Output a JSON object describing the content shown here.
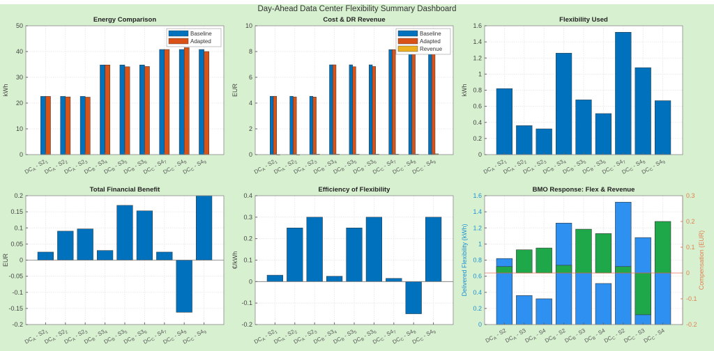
{
  "dashboard": {
    "title": "Day-Ahead Data Center Flexibility Summary Dashboard"
  },
  "colors": {
    "blue": "#0072bd",
    "orange": "#d95319",
    "yellow": "#edb120",
    "lightblue": "#2e90f0",
    "green": "#1fa84a",
    "rightaxis": "#e08050",
    "leftaxis_bmo": "#1e90d0"
  },
  "chart_data": [
    {
      "id": "energy",
      "type": "bar",
      "title": "Energy Comparison",
      "ylabel": "kWh",
      "ylim": [
        0,
        50
      ],
      "yticks": [
        0,
        10,
        20,
        30,
        40,
        50
      ],
      "categories": [
        "DC_A - S2_1",
        "DC_A - S2_2",
        "DC_A - S2_3",
        "DC_B - S3_4",
        "DC_B - S3_5",
        "DC_B - S3_6",
        "DC_C - S4_7",
        "DC_C - S4_8",
        "DC_C - S4_9"
      ],
      "series": [
        {
          "name": "Baseline",
          "color": "#0072bd",
          "values": [
            22.6,
            22.6,
            22.6,
            34.8,
            34.8,
            34.8,
            40.8,
            40.8,
            40.8
          ]
        },
        {
          "name": "Adapted",
          "color": "#d95319",
          "values": [
            22.6,
            22.4,
            22.3,
            34.8,
            34.1,
            34.2,
            40.8,
            41.5,
            40.0
          ]
        }
      ],
      "legend": "top-right",
      "grid": true
    },
    {
      "id": "cost",
      "type": "bar",
      "title": "Cost & DR Revenue",
      "ylabel": "EUR",
      "ylim": [
        0,
        10
      ],
      "yticks": [
        0,
        2,
        4,
        6,
        8,
        10
      ],
      "categories": [
        "DC_A - S2_1",
        "DC_A - S2_2",
        "DC_A - S2_3",
        "DC_B - S3_4",
        "DC_B - S3_5",
        "DC_B - S3_6",
        "DC_C - S4_7",
        "DC_C - S4_8",
        "DC_C - S4_9"
      ],
      "series": [
        {
          "name": "Baseline",
          "color": "#0072bd",
          "values": [
            4.53,
            4.53,
            4.53,
            6.97,
            6.97,
            6.97,
            8.15,
            8.15,
            8.15
          ]
        },
        {
          "name": "Adapted",
          "color": "#d95319",
          "values": [
            4.53,
            4.48,
            4.47,
            6.97,
            6.82,
            6.84,
            8.15,
            8.3,
            8.0
          ]
        },
        {
          "name": "Revenue",
          "color": "#edb120",
          "values": [
            0.0,
            0.0,
            0.03,
            0.03,
            0.03,
            0.03,
            0.03,
            0.03,
            0.06
          ]
        }
      ],
      "legend": "top-right",
      "grid": true
    },
    {
      "id": "flex",
      "type": "bar",
      "title": "Flexibility Used",
      "ylabel": "kWh",
      "ylim": [
        0,
        1.6
      ],
      "yticks": [
        0,
        0.2,
        0.4,
        0.6,
        0.8,
        1,
        1.2,
        1.4,
        1.6
      ],
      "categories": [
        "DC_A - S2_1",
        "DC_A - S2_2",
        "DC_A - S2_3",
        "DC_B - S3_4",
        "DC_B - S3_5",
        "DC_B - S3_6",
        "DC_C - S4_7",
        "DC_C - S4_8",
        "DC_C - S4_9"
      ],
      "series": [
        {
          "name": "Flexibility",
          "color": "#0072bd",
          "values": [
            0.82,
            0.36,
            0.32,
            1.26,
            0.68,
            0.51,
            1.52,
            1.08,
            0.67
          ]
        }
      ],
      "grid": true
    },
    {
      "id": "benefit",
      "type": "bar",
      "title": "Total Financial Benefit",
      "ylabel": "EUR",
      "ylim": [
        -0.2,
        0.2
      ],
      "yticks": [
        -0.2,
        -0.15,
        -0.1,
        -0.05,
        0,
        0.05,
        0.1,
        0.15,
        0.2
      ],
      "categories": [
        "DC_A - S2_1",
        "DC_A - S2_2",
        "DC_A - S2_3",
        "DC_B - S3_4",
        "DC_B - S3_5",
        "DC_B - S3_6",
        "DC_C - S4_7",
        "DC_C - S4_8",
        "DC_C - S4_9"
      ],
      "series": [
        {
          "name": "Benefit",
          "color": "#0072bd",
          "values": [
            0.025,
            0.09,
            0.097,
            0.03,
            0.17,
            0.153,
            0.025,
            -0.162,
            0.2
          ]
        }
      ],
      "grid": true
    },
    {
      "id": "efficiency",
      "type": "bar",
      "title": "Efficiency of Flexibility",
      "ylabel": "€/kWh",
      "ylim": [
        -0.2,
        0.4
      ],
      "yticks": [
        -0.2,
        -0.1,
        0,
        0.1,
        0.2,
        0.3,
        0.4
      ],
      "categories": [
        "DC_A - S2_1",
        "DC_A - S2_2",
        "DC_A - S2_3",
        "DC_B - S3_4",
        "DC_B - S3_5",
        "DC_B - S3_6",
        "DC_C - S4_7",
        "DC_C - S4_8",
        "DC_C - S4_9"
      ],
      "series": [
        {
          "name": "Efficiency",
          "color": "#0072bd",
          "values": [
            0.03,
            0.25,
            0.3,
            0.025,
            0.25,
            0.3,
            0.015,
            -0.15,
            0.3
          ]
        }
      ],
      "grid": true
    },
    {
      "id": "bmo",
      "type": "bar",
      "title": "BMO Response: Flex & Revenue",
      "ylabel": "Delivered Flexibility (kWh)",
      "ylabel_right": "Compensation (EUR)",
      "ylim": [
        0,
        1.6
      ],
      "yticks": [
        0,
        0.2,
        0.4,
        0.6,
        0.8,
        1,
        1.2,
        1.4,
        1.6
      ],
      "ylim_right": [
        -0.2,
        0.3
      ],
      "yticks_right": [
        -0.2,
        -0.1,
        0,
        0.1,
        0.2,
        0.3
      ],
      "categories": [
        "DC_A - S2",
        "DC_A - S3",
        "DC_A - S4",
        "DC_B - S2",
        "DC_B - S3",
        "DC_B - S4",
        "DC_C - S2",
        "DC_C - S3",
        "DC_C - S4"
      ],
      "series": [
        {
          "name": "Delivered Flexibility",
          "axis": "left",
          "color": "#2e90f0",
          "values": [
            0.82,
            0.36,
            0.32,
            1.26,
            0.68,
            0.51,
            1.52,
            1.08,
            0.67
          ]
        },
        {
          "name": "Compensation",
          "axis": "right",
          "color": "#1fa84a",
          "values": [
            0.025,
            0.09,
            0.097,
            0.03,
            0.17,
            0.153,
            0.025,
            -0.162,
            0.2
          ]
        }
      ],
      "grid": true
    }
  ]
}
